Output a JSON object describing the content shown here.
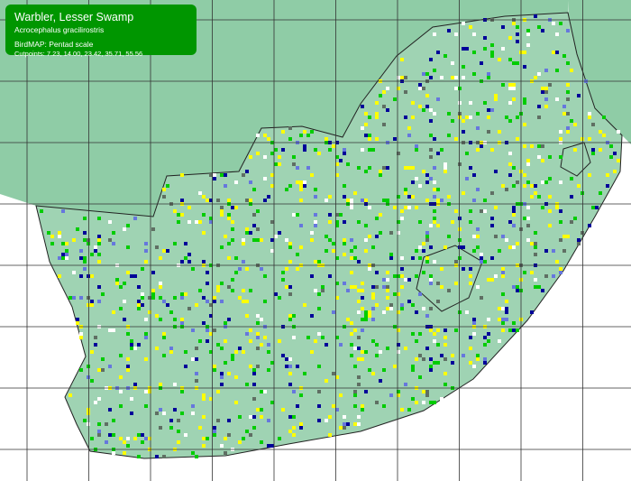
{
  "legend": {
    "common_name": "Warbler, Lesser Swamp",
    "scientific_name": "Acrocephalus gracilirostris",
    "scale": "BirdMAP: Pentad scale",
    "cutpoints": "Cutpoints: 7.23, 14.00, 23.42, 35.71, 55.56"
  },
  "colors": {
    "sea": "#ffffff",
    "land": "#8fcca6",
    "grid": "#333333",
    "legend_bg": "#009600",
    "classes": [
      "#ffff00",
      "#00cc00",
      "#000099",
      "#6677dd",
      "#5f6f63",
      "#ffffff"
    ]
  }
}
